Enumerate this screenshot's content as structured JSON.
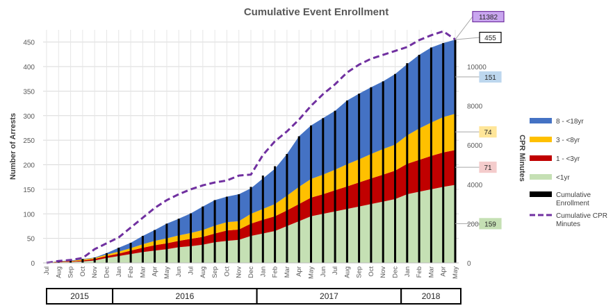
{
  "chart_data": {
    "type": "area",
    "title": "Cumulative Event Enrollment",
    "ylabel": "Number of Arrests",
    "y2label": "CPR Minutes",
    "ylim": [
      0,
      475
    ],
    "y2lim": [
      0,
      11875
    ],
    "yticks": [
      "0",
      "50",
      "100",
      "150",
      "200",
      "250",
      "300",
      "350",
      "400",
      "450"
    ],
    "y2ticks": [
      "0",
      "2000",
      "4000",
      "6000",
      "8000",
      "10000"
    ],
    "categories": [
      "Jul",
      "Aug",
      "Sep",
      "Oct",
      "Nov",
      "Dec",
      "Jan",
      "Feb",
      "Mar",
      "Apr",
      "May",
      "Jun",
      "Jul",
      "Aug",
      "Sep",
      "Oct",
      "Nov",
      "Dec",
      "Jan",
      "Feb",
      "Mar",
      "Apr",
      "May",
      "Jun",
      "Jul",
      "Aug",
      "Sep",
      "Oct",
      "Nov",
      "Dec",
      "Jan",
      "Feb",
      "Mar",
      "Apr",
      "May"
    ],
    "years": [
      {
        "label": "2015",
        "start": 0,
        "end": 5
      },
      {
        "label": "2016",
        "start": 6,
        "end": 17
      },
      {
        "label": "2017",
        "start": 18,
        "end": 29
      },
      {
        "label": "2018",
        "start": 30,
        "end": 34
      }
    ],
    "series": [
      {
        "name": "<1yr",
        "color": "#c5e0b4",
        "values": [
          0,
          1,
          2,
          3,
          5,
          10,
          14,
          18,
          22,
          25,
          28,
          32,
          34,
          37,
          42,
          45,
          47,
          55,
          60,
          65,
          75,
          85,
          95,
          100,
          105,
          110,
          115,
          120,
          125,
          130,
          140,
          145,
          150,
          155,
          159
        ]
      },
      {
        "name": "1 - <3yr",
        "color": "#c00000",
        "values": [
          0,
          1,
          1,
          2,
          3,
          4,
          5,
          7,
          9,
          11,
          12,
          13,
          15,
          16,
          18,
          21,
          21,
          25,
          28,
          30,
          32,
          35,
          38,
          40,
          43,
          46,
          49,
          52,
          55,
          58,
          62,
          65,
          68,
          70,
          71
        ]
      },
      {
        "name": "3 - <8yr",
        "color": "#ffc000",
        "values": [
          0,
          1,
          1,
          2,
          2,
          3,
          4,
          5,
          7,
          9,
          10,
          11,
          12,
          14,
          16,
          17,
          17,
          20,
          22,
          25,
          30,
          35,
          38,
          40,
          42,
          45,
          47,
          50,
          52,
          53,
          58,
          64,
          68,
          72,
          74
        ]
      },
      {
        "name": "8 - <18yr",
        "color": "#4472c4",
        "values": [
          0,
          1,
          1,
          1,
          1,
          3,
          8,
          11,
          17,
          22,
          30,
          34,
          40,
          48,
          52,
          52,
          55,
          52,
          62,
          72,
          85,
          103,
          109,
          115,
          120,
          130,
          134,
          136,
          138,
          144,
          145,
          150,
          153,
          151,
          151
        ]
      }
    ],
    "cumulative_enrollment": {
      "name": "Cumulative Enrollment",
      "color": "#000000",
      "values": [
        0,
        4,
        5,
        8,
        11,
        20,
        31,
        41,
        55,
        67,
        80,
        90,
        101,
        115,
        128,
        135,
        140,
        155,
        178,
        197,
        222,
        258,
        280,
        295,
        310,
        331,
        345,
        358,
        370,
        385,
        407,
        424,
        439,
        448,
        455
      ]
    },
    "cpr_minutes": {
      "name": "Cumulative CPR Minutes",
      "color": "#7030a0",
      "values": [
        0,
        100,
        150,
        250,
        700,
        1000,
        1300,
        1800,
        2300,
        2800,
        3200,
        3500,
        3750,
        3950,
        4100,
        4200,
        4450,
        4500,
        5500,
        6200,
        6700,
        7300,
        8000,
        8600,
        9100,
        9700,
        10100,
        10400,
        10600,
        10800,
        11000,
        11350,
        11600,
        11800,
        11382
      ]
    },
    "callouts": [
      {
        "label": "11382",
        "axis": "y2",
        "value": 11382,
        "fill": "#c9a6ef",
        "stroke": "#7030a0"
      },
      {
        "label": "455",
        "axis": "y",
        "value": 455,
        "fill": "#ffffff",
        "stroke": "#000000"
      },
      {
        "label": "151",
        "axis": "y",
        "value": 379,
        "fill": "#bdd7ee",
        "stroke": "#bdd7ee"
      },
      {
        "label": "74",
        "axis": "y",
        "value": 267,
        "fill": "#ffe699",
        "stroke": "#ffe699"
      },
      {
        "label": "71",
        "axis": "y",
        "value": 195,
        "fill": "#f4cccc",
        "stroke": "#f4cccc"
      },
      {
        "label": "159",
        "axis": "y",
        "value": 80,
        "fill": "#c5e0b4",
        "stroke": "#c5e0b4"
      }
    ],
    "legend": {
      "position": "right",
      "entries": [
        {
          "label": "8 - <18yr",
          "type": "patch",
          "color": "#4472c4"
        },
        {
          "label": "3 - <8yr",
          "type": "patch",
          "color": "#ffc000"
        },
        {
          "label": "1 - <3yr",
          "type": "patch",
          "color": "#c00000"
        },
        {
          "label": "<1yr",
          "type": "patch",
          "color": "#c5e0b4"
        },
        {
          "label": "Cumulative Enrollment",
          "type": "bar",
          "color": "#000000"
        },
        {
          "label": "Cumulative CPR Minutes",
          "type": "dash",
          "color": "#7030a0"
        }
      ]
    },
    "grid": true
  }
}
